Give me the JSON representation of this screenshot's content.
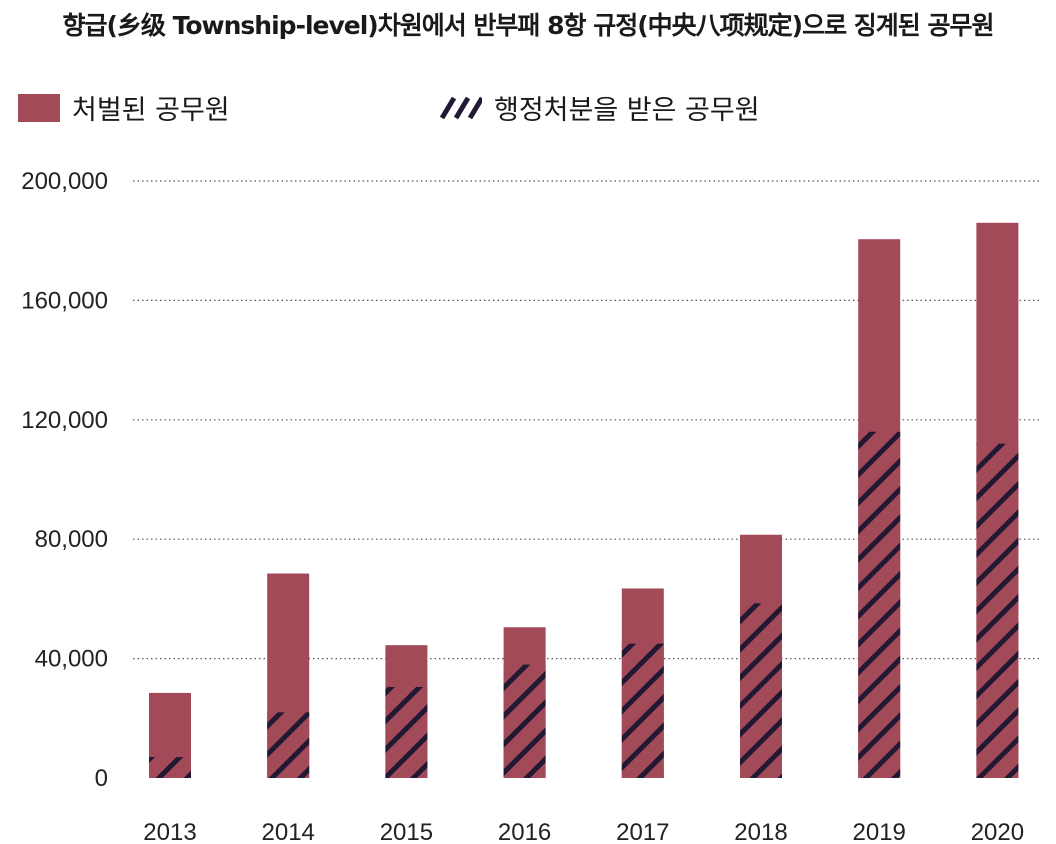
{
  "chart_data": {
    "type": "bar",
    "title": "향급(乡级 Township-level)차원에서 반부패 8항 규정(中央八项规定)으로 징계된 공무원",
    "xlabel": "",
    "ylabel": "",
    "categories": [
      "2013",
      "2014",
      "2015",
      "2016",
      "2017",
      "2018",
      "2019",
      "2020"
    ],
    "series": [
      {
        "name": "처벌된 공무원",
        "values": [
          28500,
          68500,
          44500,
          50500,
          63500,
          81500,
          180500,
          186000
        ],
        "color": "#a34a58",
        "pattern": "solid"
      },
      {
        "name": "행정처분을 받은 공무원",
        "values": [
          7000,
          22000,
          30500,
          38000,
          45000,
          58500,
          116000,
          112000
        ],
        "color": "#221833",
        "pattern": "hatch"
      }
    ],
    "ylim": [
      0,
      200000
    ],
    "yticks": [
      "0",
      "40,000",
      "80,000",
      "120,000",
      "160,000",
      "200,000"
    ],
    "grid": true,
    "legend_position": "top-left"
  }
}
